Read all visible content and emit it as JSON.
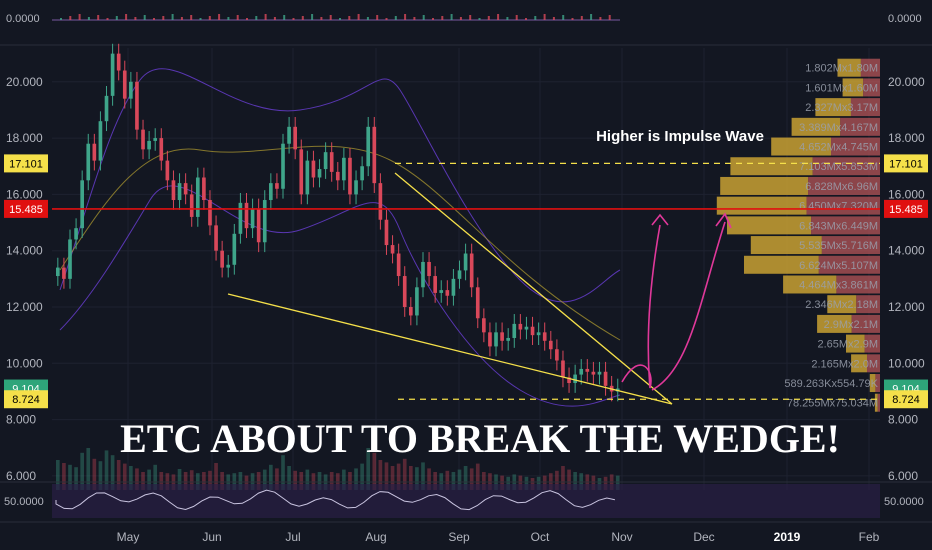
{
  "colors": {
    "background": "#131722",
    "grid": "#1e2230",
    "up": "#3fa58a",
    "down": "#d9485a",
    "wedge": "#f5e04a",
    "resistance": "#e01010",
    "target": "#e0389a",
    "vp_up": "#c9a132",
    "vp_down": "#b55658",
    "text": "#b2b5be",
    "rsi_band": "#2a1f45",
    "bb": "#6a3fd6"
  },
  "chart_data": {
    "type": "candlestick",
    "title": "ETC ABOUT TO BREAK THE WEDGE!",
    "annotation": "Higher is Impulse Wave",
    "y_axis": {
      "min": 5.5,
      "max": 21.2,
      "ticks": [
        "6.000",
        "8.000",
        "10.000",
        "12.000",
        "14.000",
        "16.000",
        "18.000",
        "20.000"
      ],
      "tick_values": [
        6,
        8,
        10,
        12,
        14,
        16,
        18,
        20
      ]
    },
    "x_axis": {
      "labels": [
        "May",
        "Jun",
        "Jul",
        "Aug",
        "Sep",
        "Oct",
        "Nov",
        "Dec",
        "2019",
        "Feb"
      ],
      "bold_labels": [
        "2019"
      ]
    },
    "price_tags": [
      {
        "value": 17.101,
        "label": "17.101",
        "style": "yellow"
      },
      {
        "value": 15.485,
        "label": "15.485",
        "style": "red"
      },
      {
        "value": 9.104,
        "label": "9.104",
        "style": "green"
      },
      {
        "value": 8.724,
        "label": "8.724",
        "style": "yellow"
      }
    ],
    "top_panel": {
      "left_label": "0.0000",
      "right_label": "0.0000"
    },
    "rsi_panel": {
      "left_label": "50.0000",
      "right_label": "50.0000"
    },
    "lines": {
      "resistance": 15.485,
      "upper_dashed": 17.101,
      "lower_dashed": 8.724
    },
    "volume_profile": [
      {
        "price": 20.5,
        "label": "1.802Mx1.80M",
        "total": 0.25
      },
      {
        "price": 19.8,
        "label": "1.601Mx1.60M",
        "total": 0.22
      },
      {
        "price": 19.1,
        "label": "2.327Mx3.17M",
        "total": 0.38
      },
      {
        "price": 18.4,
        "label": "3.389Mx4.167M",
        "total": 0.52
      },
      {
        "price": 17.7,
        "label": "4.652Mx4.745M",
        "total": 0.64
      },
      {
        "price": 17.0,
        "label": "7.103Mx5.853M",
        "total": 0.88
      },
      {
        "price": 16.3,
        "label": "6.828Mx6.96M",
        "total": 0.94
      },
      {
        "price": 15.6,
        "label": "6.450Mx7.320M",
        "total": 0.96
      },
      {
        "price": 14.9,
        "label": "6.843Mx6.449M",
        "total": 0.9
      },
      {
        "price": 14.2,
        "label": "5.535Mx5.716M",
        "total": 0.76
      },
      {
        "price": 13.5,
        "label": "6.624Mx5.107M",
        "total": 0.8
      },
      {
        "price": 12.8,
        "label": "4.464Mx3.861M",
        "total": 0.57
      },
      {
        "price": 12.1,
        "label": "2.346Mx2.18M",
        "total": 0.31
      },
      {
        "price": 11.4,
        "label": "2.9Mx2.1M",
        "total": 0.37
      },
      {
        "price": 10.7,
        "label": "2.65Mx2.9M",
        "total": 0.2
      },
      {
        "price": 10.0,
        "label": "2.165Mx2.0M",
        "total": 0.17
      },
      {
        "price": 9.3,
        "label": "589.263Kx554.79K",
        "total": 0.06
      },
      {
        "price": 8.6,
        "label": "78.255Mx75.034M",
        "total": 0.03
      }
    ],
    "closes": [
      13.4,
      13.0,
      14.4,
      14.8,
      16.5,
      17.8,
      17.2,
      18.6,
      19.5,
      21.0,
      20.4,
      19.4,
      20.0,
      18.3,
      17.6,
      17.9,
      18.0,
      17.2,
      16.5,
      15.8,
      16.4,
      16.0,
      15.2,
      16.6,
      15.8,
      14.9,
      14.0,
      13.4,
      13.5,
      14.6,
      15.7,
      14.8,
      15.5,
      14.3,
      15.8,
      16.4,
      16.2,
      17.8,
      18.4,
      17.6,
      16.0,
      17.2,
      16.6,
      16.9,
      17.5,
      16.8,
      16.5,
      17.3,
      16.0,
      16.5,
      17.0,
      18.4,
      16.4,
      15.1,
      14.2,
      13.9,
      13.1,
      12.0,
      11.7,
      12.7,
      13.6,
      13.1,
      12.5,
      12.6,
      12.4,
      13.0,
      13.3,
      13.9,
      12.7,
      11.6,
      11.1,
      10.6,
      11.1,
      10.8,
      10.9,
      11.4,
      11.2,
      11.3,
      11.0,
      11.1,
      10.8,
      10.5,
      10.1,
      9.5,
      9.3,
      9.6,
      9.8,
      9.7,
      9.6,
      9.7,
      9.2,
      9.0,
      9.104
    ],
    "volumes": [
      0.5,
      0.45,
      0.42,
      0.38,
      0.62,
      0.7,
      0.52,
      0.48,
      0.66,
      0.58,
      0.5,
      0.44,
      0.4,
      0.36,
      0.3,
      0.34,
      0.42,
      0.3,
      0.28,
      0.26,
      0.35,
      0.3,
      0.33,
      0.28,
      0.3,
      0.32,
      0.45,
      0.3,
      0.26,
      0.28,
      0.3,
      0.24,
      0.28,
      0.3,
      0.34,
      0.42,
      0.36,
      0.58,
      0.4,
      0.32,
      0.3,
      0.34,
      0.28,
      0.3,
      0.26,
      0.3,
      0.28,
      0.34,
      0.3,
      0.36,
      0.44,
      0.7,
      0.62,
      0.5,
      0.46,
      0.4,
      0.44,
      0.52,
      0.4,
      0.38,
      0.46,
      0.36,
      0.3,
      0.28,
      0.32,
      0.3,
      0.34,
      0.4,
      0.36,
      0.44,
      0.3,
      0.28,
      0.26,
      0.24,
      0.22,
      0.26,
      0.24,
      0.22,
      0.2,
      0.22,
      0.24,
      0.28,
      0.32,
      0.4,
      0.34,
      0.3,
      0.28,
      0.26,
      0.24,
      0.2,
      0.22,
      0.26,
      0.24
    ]
  }
}
